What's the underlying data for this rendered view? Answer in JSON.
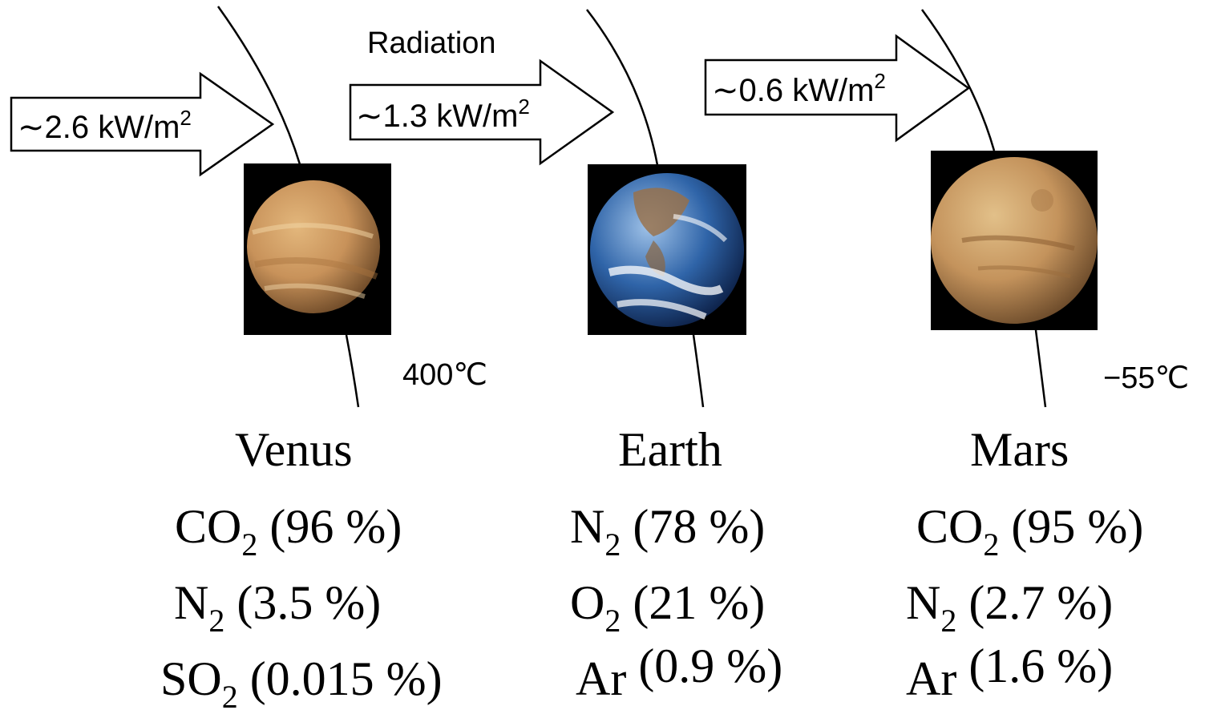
{
  "header": {
    "radiation_label": "Radiation"
  },
  "planets": [
    {
      "name": "Venus",
      "flux": "∼2.6 kW/m",
      "flux_sup": "2",
      "temperature": "400℃",
      "colors": {
        "light": "#e3b77c",
        "mid": "#c8925a",
        "dark": "#6e4a28"
      },
      "gases": [
        {
          "formula": "CO",
          "sub": "2",
          "percent": " (96 %)"
        },
        {
          "formula": "N",
          "sub": "2",
          "percent": " (3.5 %)"
        },
        {
          "formula": "SO",
          "sub": "2",
          "percent": " (0.015 %)"
        }
      ]
    },
    {
      "name": "Earth",
      "flux": "∼1.3 kW/m",
      "flux_sup": "2",
      "temperature": "",
      "colors": {
        "light": "#9fc2e8",
        "mid": "#2f64a8",
        "dark": "#0d2148"
      },
      "gases": [
        {
          "formula": "N",
          "sub": "2",
          "percent": " (78 %)"
        },
        {
          "formula": "O",
          "sub": "2",
          "percent": " (21 %)"
        },
        {
          "formula": "Ar",
          "sub": "",
          "percent": " (0.9 %)"
        }
      ]
    },
    {
      "name": "Mars",
      "flux": "∼0.6 kW/m",
      "flux_sup": "2",
      "temperature": "−55℃",
      "colors": {
        "light": "#e2c089",
        "mid": "#c4935c",
        "dark": "#6b4a2a"
      },
      "gases": [
        {
          "formula": "CO",
          "sub": "2",
          "percent": " (95 %)"
        },
        {
          "formula": "N",
          "sub": "2",
          "percent": " (2.7 %)"
        },
        {
          "formula": "Ar",
          "sub": "",
          "percent": " (1.6 %)"
        }
      ]
    }
  ]
}
